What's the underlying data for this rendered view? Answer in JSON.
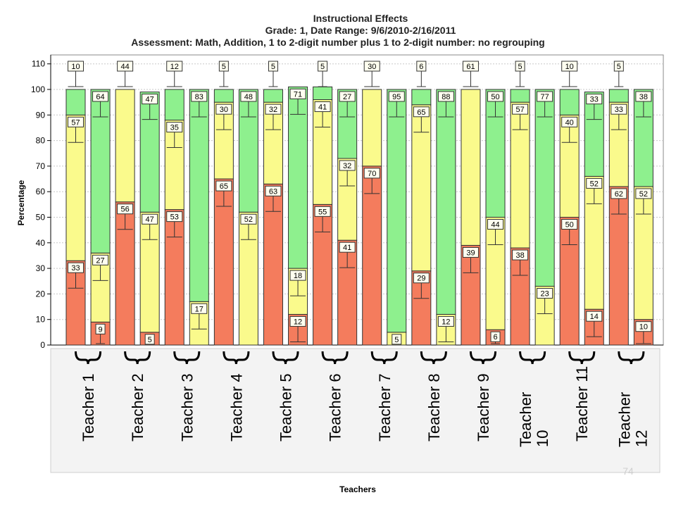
{
  "chart_data": {
    "type": "bar",
    "stacked": true,
    "title": "Instructional Effects",
    "subtitle_1": "Grade: 1, Date Range: 9/6/2010-2/16/2011",
    "subtitle_2": "Assessment: Math, Addition, 1 to 2-digit number plus 1 to 2-digit number: no regrouping",
    "xlabel": "Teachers",
    "ylabel": "Percentage",
    "ylim": [
      0,
      112
    ],
    "yticks": [
      0,
      10,
      20,
      30,
      40,
      50,
      60,
      70,
      80,
      90,
      100,
      110
    ],
    "grid": true,
    "colors": {
      "red": "#f47c5d",
      "yellow": "#fafa8c",
      "green": "#8ef08e"
    },
    "bars": [
      {
        "red": 33,
        "yellow": 57,
        "green": 10,
        "labels": {
          "red": "33",
          "yellow": "57",
          "green": "10"
        }
      },
      {
        "red": 9,
        "yellow": 27,
        "green": 64,
        "labels": {
          "red": "9",
          "yellow": "27",
          "green": "64"
        }
      },
      {
        "red": 56,
        "yellow": 44,
        "green": 0,
        "labels": {
          "red": "56",
          "yellow": "44"
        }
      },
      {
        "red": 5,
        "yellow": 47,
        "green": 47,
        "labels": {
          "red": "5",
          "yellow": "47",
          "green": "47"
        }
      },
      {
        "red": 53,
        "yellow": 35,
        "green": 12,
        "labels": {
          "red": "53",
          "yellow": "35",
          "green": "12"
        }
      },
      {
        "red": 0,
        "yellow": 17,
        "green": 83,
        "labels": {
          "yellow": "17",
          "green": "83"
        }
      },
      {
        "red": 65,
        "yellow": 30,
        "green": 5,
        "labels": {
          "red": "65",
          "yellow": "30",
          "green": "5"
        }
      },
      {
        "red": 0,
        "yellow": 52,
        "green": 48,
        "labels": {
          "yellow": "52",
          "green": "48"
        }
      },
      {
        "red": 63,
        "yellow": 32,
        "green": 5,
        "labels": {
          "red": "63",
          "yellow": "32",
          "green": "5"
        }
      },
      {
        "red": 12,
        "yellow": 18,
        "green": 71,
        "labels": {
          "red": "12",
          "yellow": "18",
          "green": "71"
        }
      },
      {
        "red": 55,
        "yellow": 41,
        "green": 5,
        "labels": {
          "red": "55",
          "yellow": "41",
          "green": "5"
        }
      },
      {
        "red": 41,
        "yellow": 32,
        "green": 27,
        "labels": {
          "red": "41",
          "yellow": "32",
          "green": "27"
        }
      },
      {
        "red": 70,
        "yellow": 30,
        "green": 0,
        "labels": {
          "red": "70",
          "yellow": "30"
        }
      },
      {
        "red": 0,
        "yellow": 5,
        "green": 95,
        "labels": {
          "yellow": "5",
          "green": "95"
        }
      },
      {
        "red": 29,
        "yellow": 65,
        "green": 6,
        "labels": {
          "red": "29",
          "yellow": "65",
          "green": "6"
        }
      },
      {
        "red": 0,
        "yellow": 12,
        "green": 88,
        "labels": {
          "yellow": "12",
          "green": "88"
        }
      },
      {
        "red": 39,
        "yellow": 61,
        "green": 0,
        "labels": {
          "red": "39",
          "yellow": "61"
        }
      },
      {
        "red": 6,
        "yellow": 44,
        "green": 50,
        "labels": {
          "red": "6",
          "yellow": "44",
          "green": "50"
        }
      },
      {
        "red": 38,
        "yellow": 57,
        "green": 5,
        "labels": {
          "red": "38",
          "yellow": "57",
          "green": "5"
        }
      },
      {
        "red": 0,
        "yellow": 23,
        "green": 77,
        "labels": {
          "yellow": "23",
          "green": "77"
        }
      },
      {
        "red": 50,
        "yellow": 40,
        "green": 10,
        "labels": {
          "red": "50",
          "yellow": "40",
          "green": "10"
        }
      },
      {
        "red": 14,
        "yellow": 52,
        "green": 33,
        "labels": {
          "red": "14",
          "yellow": "52",
          "green": "33"
        }
      },
      {
        "red": 62,
        "yellow": 33,
        "green": 5,
        "labels": {
          "red": "62",
          "yellow": "33",
          "green": "5"
        }
      },
      {
        "red": 10,
        "yellow": 52,
        "green": 38,
        "labels": {
          "red": "10",
          "yellow": "52",
          "green": "38"
        }
      }
    ],
    "teachers": [
      {
        "line1": "Teacher 1",
        "line2": ""
      },
      {
        "line1": "Teacher 2",
        "line2": ""
      },
      {
        "line1": "Teacher 3",
        "line2": ""
      },
      {
        "line1": "Teacher 4",
        "line2": ""
      },
      {
        "line1": "Teacher 5",
        "line2": ""
      },
      {
        "line1": "Teacher 6",
        "line2": ""
      },
      {
        "line1": "Teacher 7",
        "line2": ""
      },
      {
        "line1": "Teacher 8",
        "line2": ""
      },
      {
        "line1": "Teacher 9",
        "line2": ""
      },
      {
        "line1": "Teacher",
        "line2": "10"
      },
      {
        "line1": "Teacher 11",
        "line2": ""
      },
      {
        "line1": "Teacher",
        "line2": "12"
      }
    ]
  },
  "page_number": "74"
}
